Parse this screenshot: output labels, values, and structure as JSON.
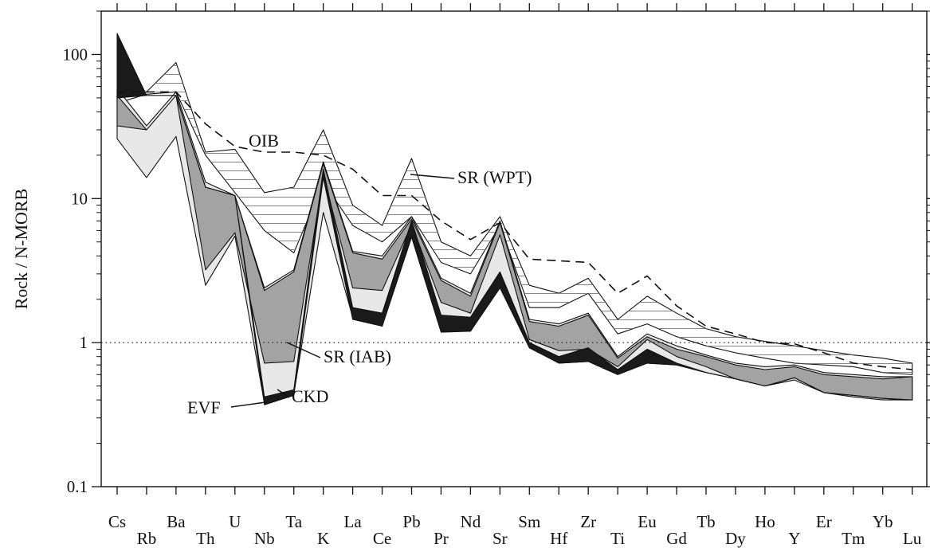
{
  "chart_data": {
    "type": "line",
    "ylabel": "Rock / N-MORB",
    "yscale": "log",
    "ylim": [
      0.1,
      200
    ],
    "yticks": [
      0.1,
      1,
      10,
      100
    ],
    "ytick_labels": [
      "0.1",
      "1",
      "10",
      "100"
    ],
    "reference_line": 1,
    "categories": [
      "Cs",
      "Rb",
      "Ba",
      "Th",
      "U",
      "Nb",
      "Ta",
      "K",
      "La",
      "Ce",
      "Pb",
      "Pr",
      "Nd",
      "Sr",
      "Sm",
      "Hf",
      "Zr",
      "Ti",
      "Eu",
      "Gd",
      "Tb",
      "Dy",
      "Ho",
      "Y",
      "Er",
      "Tm",
      "Yb",
      "Lu"
    ],
    "fields": [
      {
        "name": "SR (WPT)",
        "fill": "#ffffff",
        "hatch": true,
        "upper": [
          55,
          55,
          88,
          21,
          22,
          11,
          12,
          30,
          9,
          6.5,
          19,
          5,
          4,
          7.5,
          2.5,
          2.2,
          2.8,
          1.45,
          2.1,
          1.6,
          1.25,
          1.1,
          1.02,
          0.95,
          0.88,
          0.82,
          0.78,
          0.72
        ],
        "lower": [
          46,
          53,
          55,
          20,
          11,
          6,
          4.2,
          13,
          6.5,
          5,
          7.5,
          3.6,
          3,
          6.5,
          1.75,
          1.75,
          2.2,
          1.15,
          1.35,
          1.1,
          0.95,
          0.85,
          0.78,
          0.72,
          0.7,
          0.68,
          0.62,
          0.6
        ]
      },
      {
        "name": "CKD",
        "fill": "#e8e8e8",
        "upper": [
          58,
          32,
          55,
          13,
          10.5,
          2.4,
          3.2,
          18,
          4.3,
          4,
          7.5,
          2.8,
          2.2,
          7,
          1.45,
          1.35,
          1.6,
          0.8,
          1.15,
          0.95,
          0.82,
          0.72,
          0.68,
          0.7,
          0.62,
          0.6,
          0.58,
          0.58
        ],
        "lower": [
          26,
          14,
          27,
          2.5,
          5.5,
          0.38,
          0.44,
          8,
          1.5,
          1.3,
          6,
          1.2,
          1.2,
          2.5,
          0.95,
          0.72,
          0.74,
          0.6,
          0.72,
          0.7,
          0.62,
          0.56,
          0.5,
          0.55,
          0.45,
          0.42,
          0.4,
          0.4
        ]
      },
      {
        "name": "SR (IAB)",
        "fill": "#a3a3a3",
        "upper": [
          52,
          30,
          52,
          12,
          10.5,
          2.3,
          3.1,
          17.5,
          4.2,
          3.8,
          7.2,
          2.7,
          2.1,
          6.8,
          1.4,
          1.3,
          1.55,
          0.78,
          1.1,
          0.9,
          0.8,
          0.7,
          0.65,
          0.68,
          0.6,
          0.58,
          0.56,
          0.58
        ],
        "lower": [
          32,
          30,
          52,
          3.2,
          5.8,
          0.72,
          0.74,
          14.5,
          2.4,
          2.3,
          6.6,
          1.9,
          1.6,
          5.6,
          1.05,
          0.88,
          0.9,
          0.68,
          1.05,
          0.8,
          0.68,
          0.56,
          0.5,
          0.57,
          0.45,
          0.43,
          0.41,
          0.4
        ]
      },
      {
        "name": "EVF",
        "fill": "#1a1a1a",
        "upper": [
          140,
          52,
          52,
          12,
          10.5,
          0.42,
          0.47,
          16,
          1.75,
          1.6,
          7,
          1.55,
          1.5,
          3.1,
          1.0,
          0.8,
          0.92,
          0.65,
          0.9,
          0.72,
          0.62,
          0.56,
          0.5,
          0.57,
          0.45,
          0.43,
          0.41,
          0.4
        ],
        "lower": [
          50,
          52,
          52,
          12,
          10.5,
          0.37,
          0.43,
          14,
          1.45,
          1.3,
          5.4,
          1.18,
          1.2,
          2.4,
          0.92,
          0.72,
          0.74,
          0.6,
          0.72,
          0.7,
          0.62,
          0.56,
          0.5,
          0.57,
          0.45,
          0.43,
          0.41,
          0.4
        ]
      }
    ],
    "series": [
      {
        "name": "OIB",
        "style": "dashed",
        "values": [
          55,
          55,
          55,
          33,
          23,
          21,
          21,
          20,
          16,
          10.5,
          10.5,
          7,
          5.2,
          6.8,
          3.8,
          3.7,
          3.6,
          2.2,
          2.9,
          1.8,
          1.3,
          1.15,
          1.0,
          0.98,
          0.85,
          0.72,
          0.68,
          0.65
        ]
      }
    ],
    "annotations": [
      {
        "text": "OIB"
      },
      {
        "text": "SR (WPT)"
      },
      {
        "text": "SR (IAB)"
      },
      {
        "text": "CKD"
      },
      {
        "text": "EVF"
      }
    ]
  }
}
